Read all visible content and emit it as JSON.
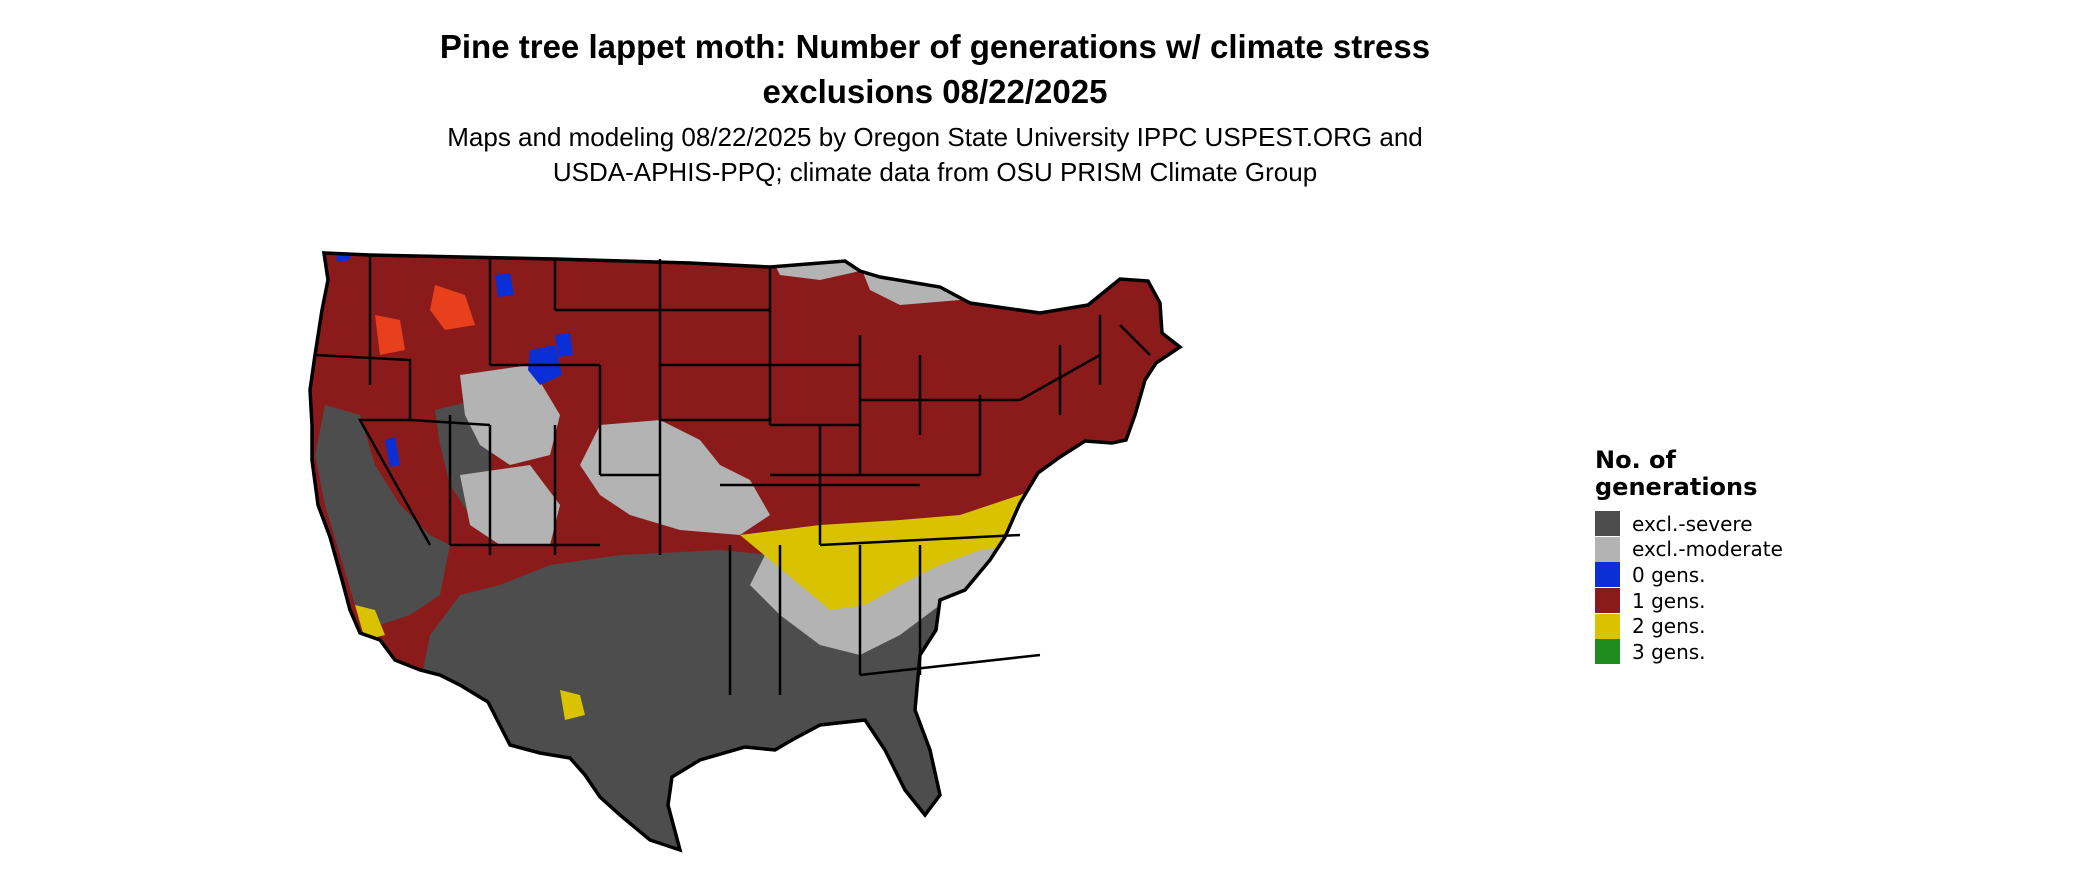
{
  "map": {
    "title_line1": "Pine tree lappet moth: Number of generations w/ climate stress",
    "title_line2": "exclusions 08/22/2025",
    "subtitle_line1": "Maps and modeling 08/22/2025 by Oregon State University IPPC USPEST.ORG and",
    "subtitle_line2": "USDA-APHIS-PPQ; climate data from OSU PRISM Climate Group",
    "region": "Conterminous United States"
  },
  "legend": {
    "title_line1": "No. of",
    "title_line2": "generations",
    "items": [
      {
        "label": "excl.-severe",
        "color": "#4d4d4d"
      },
      {
        "label": "excl.-moderate",
        "color": "#b3b3b3"
      },
      {
        "label": "0 gens.",
        "color": "#0a2fd6"
      },
      {
        "label": "1 gens.",
        "color": "#8b1a1a"
      },
      {
        "label": "2 gens.",
        "color": "#d9c200"
      },
      {
        "label": "3 gens.",
        "color": "#1e8c1e"
      }
    ]
  },
  "colors": {
    "severe": "#4d4d4d",
    "moderate": "#b3b3b3",
    "gen0": "#0a2fd6",
    "gen1": "#8b1a1a",
    "gen1_bright": "#e8401c",
    "gen2": "#d9c200",
    "gen3": "#1e8c1e",
    "border": "#000000"
  }
}
